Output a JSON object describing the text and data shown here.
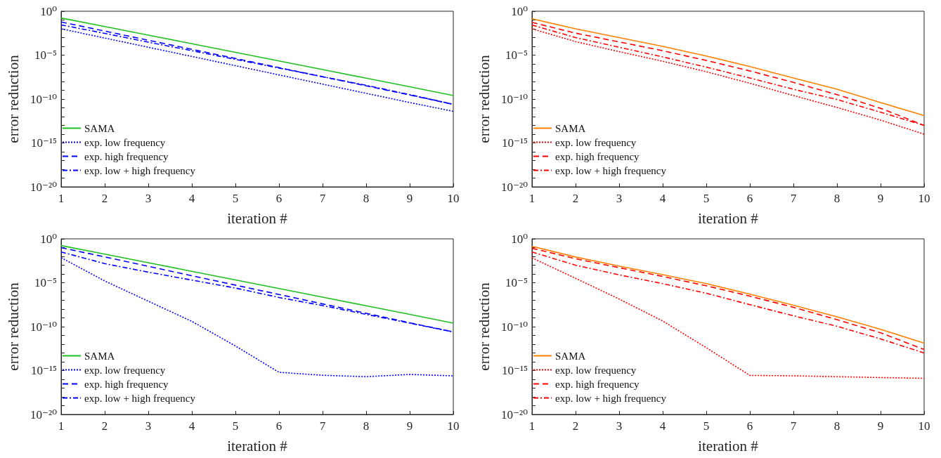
{
  "chart_data": [
    {
      "type": "line",
      "xlabel": "iteration #",
      "ylabel": "error reduction",
      "x": [
        1,
        2,
        3,
        4,
        5,
        6,
        7,
        8,
        9,
        10
      ],
      "log": "y",
      "grid": false,
      "legend": "bottom left",
      "xlim": [
        1,
        10
      ],
      "xticks": [
        1,
        2,
        3,
        4,
        5,
        6,
        7,
        8,
        9,
        10
      ],
      "ylim": [
        1e-20,
        1
      ],
      "yticks": [
        {
          "value": 1,
          "label": "10⁰"
        },
        {
          "value": 0.1,
          "label": null
        },
        {
          "value": 0.01,
          "label": null
        },
        {
          "value": 0.001,
          "label": null
        },
        {
          "value": 0.0001,
          "label": null
        },
        {
          "value": 1e-05,
          "label": "10⁻⁵"
        },
        {
          "value": 1e-06,
          "label": null
        },
        {
          "value": 1e-07,
          "label": null
        },
        {
          "value": 1e-08,
          "label": null
        },
        {
          "value": 1e-09,
          "label": null
        },
        {
          "value": 1e-10,
          "label": "10⁻¹⁰"
        },
        {
          "value": 1e-11,
          "label": null
        },
        {
          "value": 1e-12,
          "label": null
        },
        {
          "value": 1e-13,
          "label": null
        },
        {
          "value": 1e-14,
          "label": null
        },
        {
          "value": 1e-15,
          "label": "10⁻¹⁵"
        },
        {
          "value": 1e-16,
          "label": null
        },
        {
          "value": 1e-17,
          "label": null
        },
        {
          "value": 1e-18,
          "label": null
        },
        {
          "value": 1e-19,
          "label": null
        },
        {
          "value": 1e-20,
          "label": "10⁻²⁰"
        }
      ],
      "series": [
        {
          "name": "SAMA",
          "color": "#1fbf1f",
          "line_style": "solid",
          "values": [
            0.17,
            0.018,
            0.0019,
            0.0002,
            2.1e-05,
            2.2e-06,
            2.3e-07,
            2.4e-08,
            2.5e-09,
            2.5e-10
          ]
        },
        {
          "name": "exp. low frequency",
          "color": "#0000ff",
          "line_style": "dotted",
          "values": [
            0.01,
            0.00089,
            7.9e-05,
            7.1e-06,
            6.3e-07,
            5.6e-08,
            5e-09,
            4.5e-10,
            4e-11,
            4e-12
          ]
        },
        {
          "name": "exp. high frequency",
          "color": "#0000ff",
          "line_style": "dashed",
          "values": [
            0.06,
            0.0055,
            0.0005,
            4.6e-05,
            4.2e-06,
            3.8e-07,
            3.5e-08,
            3.2e-09,
            2.9e-10,
            2.5e-11
          ]
        },
        {
          "name": "exp. low + high frequency",
          "color": "#0000ff",
          "line_style": "dashdot",
          "values": [
            0.028,
            0.003,
            0.0003,
            3.2e-05,
            3.3e-06,
            3.4e-07,
            3.5e-08,
            3.7e-09,
            3.2e-10,
            2.5e-11
          ]
        }
      ]
    },
    {
      "type": "line",
      "xlabel": "iteration #",
      "ylabel": "error reduction",
      "x": [
        1,
        2,
        3,
        4,
        5,
        6,
        7,
        8,
        9,
        10
      ],
      "log": "y",
      "grid": false,
      "legend": "bottom left",
      "xlim": [
        1,
        10
      ],
      "xticks": [
        1,
        2,
        3,
        4,
        5,
        6,
        7,
        8,
        9,
        10
      ],
      "ylim": [
        1e-20,
        1
      ],
      "yticks": [
        {
          "value": 1,
          "label": "10⁰"
        },
        {
          "value": 0.1,
          "label": null
        },
        {
          "value": 0.01,
          "label": null
        },
        {
          "value": 0.001,
          "label": null
        },
        {
          "value": 0.0001,
          "label": null
        },
        {
          "value": 1e-05,
          "label": "10⁻⁵"
        },
        {
          "value": 1e-06,
          "label": null
        },
        {
          "value": 1e-07,
          "label": null
        },
        {
          "value": 1e-08,
          "label": null
        },
        {
          "value": 1e-09,
          "label": null
        },
        {
          "value": 1e-10,
          "label": "10⁻¹⁰"
        },
        {
          "value": 1e-11,
          "label": null
        },
        {
          "value": 1e-12,
          "label": null
        },
        {
          "value": 1e-13,
          "label": null
        },
        {
          "value": 1e-14,
          "label": null
        },
        {
          "value": 1e-15,
          "label": "10⁻¹⁵"
        },
        {
          "value": 1e-16,
          "label": null
        },
        {
          "value": 1e-17,
          "label": null
        },
        {
          "value": 1e-18,
          "label": null
        },
        {
          "value": 1e-19,
          "label": null
        },
        {
          "value": 1e-20,
          "label": "10⁻²⁰"
        }
      ],
      "series": [
        {
          "name": "SAMA",
          "color": "#ff8000",
          "line_style": "solid",
          "values": [
            0.14,
            0.01,
            0.001,
            0.0001,
            7.9e-06,
            5e-07,
            2.5e-08,
            1.3e-09,
            4e-11,
            1.3e-12
          ]
        },
        {
          "name": "exp. low frequency",
          "color": "#ff0000",
          "line_style": "dotted",
          "values": [
            0.01,
            0.00035,
            2.5e-05,
            2e-06,
            1.3e-07,
            6.3e-09,
            2.5e-10,
            1.1e-11,
            4e-13,
            1e-14
          ]
        },
        {
          "name": "exp. high frequency",
          "color": "#ff0000",
          "line_style": "dashed",
          "values": [
            0.054,
            0.0032,
            0.00032,
            3.2e-05,
            2.5e-06,
            1.6e-07,
            7.9e-09,
            3.2e-10,
            8.9e-12,
            1e-13
          ]
        },
        {
          "name": "exp. low + high frequency",
          "color": "#ff0000",
          "line_style": "dashdot",
          "values": [
            0.027,
            0.001,
            7.9e-05,
            6.3e-06,
            4.3e-07,
            2.5e-08,
            1.3e-09,
            8.9e-11,
            3.2e-12,
            1e-13
          ]
        }
      ]
    },
    {
      "type": "line",
      "xlabel": "iteration #",
      "ylabel": "error reduction",
      "x": [
        1,
        2,
        3,
        4,
        5,
        6,
        7,
        8,
        9,
        10
      ],
      "log": "y",
      "grid": false,
      "legend": "bottom left",
      "xlim": [
        1,
        10
      ],
      "xticks": [
        1,
        2,
        3,
        4,
        5,
        6,
        7,
        8,
        9,
        10
      ],
      "ylim": [
        1e-20,
        1
      ],
      "yticks": [
        {
          "value": 1,
          "label": "10⁰"
        },
        {
          "value": 0.1,
          "label": null
        },
        {
          "value": 0.01,
          "label": null
        },
        {
          "value": 0.001,
          "label": null
        },
        {
          "value": 0.0001,
          "label": null
        },
        {
          "value": 1e-05,
          "label": "10⁻⁵"
        },
        {
          "value": 1e-06,
          "label": null
        },
        {
          "value": 1e-07,
          "label": null
        },
        {
          "value": 1e-08,
          "label": null
        },
        {
          "value": 1e-09,
          "label": null
        },
        {
          "value": 1e-10,
          "label": "10⁻¹⁰"
        },
        {
          "value": 1e-11,
          "label": null
        },
        {
          "value": 1e-12,
          "label": null
        },
        {
          "value": 1e-13,
          "label": null
        },
        {
          "value": 1e-14,
          "label": null
        },
        {
          "value": 1e-15,
          "label": "10⁻¹⁵"
        },
        {
          "value": 1e-16,
          "label": null
        },
        {
          "value": 1e-17,
          "label": null
        },
        {
          "value": 1e-18,
          "label": null
        },
        {
          "value": 1e-19,
          "label": null
        },
        {
          "value": 1e-20,
          "label": "10⁻²⁰"
        }
      ],
      "series": [
        {
          "name": "SAMA",
          "color": "#1fbf1f",
          "line_style": "solid",
          "values": [
            0.17,
            0.018,
            0.0019,
            0.0002,
            2.1e-05,
            2.2e-06,
            2.3e-07,
            2.4e-08,
            2.5e-09,
            2.5e-10
          ]
        },
        {
          "name": "exp. low frequency",
          "color": "#0000ff",
          "line_style": "dotted",
          "values": [
            0.0071,
            1.6e-05,
            7.9e-08,
            4e-10,
            6.3e-13,
            6.3e-16,
            2.9e-16,
            2e-16,
            3.6e-16,
            2.5e-16
          ]
        },
        {
          "name": "exp. high frequency",
          "color": "#0000ff",
          "line_style": "dashed",
          "values": [
            0.1,
            0.0087,
            0.00074,
            6.3e-05,
            5.4e-06,
            4.6e-07,
            3.9e-08,
            3.3e-09,
            2.8e-10,
            2.5e-11
          ]
        },
        {
          "name": "exp. low + high frequency",
          "color": "#0000ff",
          "line_style": "dashdot",
          "values": [
            0.032,
            0.0015,
            0.00016,
            2e-05,
            2.5e-06,
            2.1e-07,
            2.5e-08,
            2.5e-09,
            2.5e-10,
            2.5e-11
          ]
        }
      ]
    },
    {
      "type": "line",
      "xlabel": "iteration #",
      "ylabel": "error reduction",
      "x": [
        1,
        2,
        3,
        4,
        5,
        6,
        7,
        8,
        9,
        10
      ],
      "log": "y",
      "grid": false,
      "legend": "bottom left",
      "xlim": [
        1,
        10
      ],
      "xticks": [
        1,
        2,
        3,
        4,
        5,
        6,
        7,
        8,
        9,
        10
      ],
      "ylim": [
        1e-20,
        1
      ],
      "yticks": [
        {
          "value": 1,
          "label": "10⁰"
        },
        {
          "value": 0.1,
          "label": null
        },
        {
          "value": 0.01,
          "label": null
        },
        {
          "value": 0.001,
          "label": null
        },
        {
          "value": 0.0001,
          "label": null
        },
        {
          "value": 1e-05,
          "label": "10⁻⁵"
        },
        {
          "value": 1e-06,
          "label": null
        },
        {
          "value": 1e-07,
          "label": null
        },
        {
          "value": 1e-08,
          "label": null
        },
        {
          "value": 1e-09,
          "label": null
        },
        {
          "value": 1e-10,
          "label": "10⁻¹⁰"
        },
        {
          "value": 1e-11,
          "label": null
        },
        {
          "value": 1e-12,
          "label": null
        },
        {
          "value": 1e-13,
          "label": null
        },
        {
          "value": 1e-14,
          "label": null
        },
        {
          "value": 1e-15,
          "label": "10⁻¹⁵"
        },
        {
          "value": 1e-16,
          "label": null
        },
        {
          "value": 1e-17,
          "label": null
        },
        {
          "value": 1e-18,
          "label": null
        },
        {
          "value": 1e-19,
          "label": null
        },
        {
          "value": 1e-20,
          "label": "10⁻²⁰"
        }
      ],
      "series": [
        {
          "name": "SAMA",
          "color": "#ff8000",
          "line_style": "solid",
          "values": [
            0.14,
            0.0085,
            0.00079,
            8.3e-05,
            7.9e-06,
            5e-07,
            2.8e-08,
            1.3e-09,
            5e-11,
            1.3e-12
          ]
        },
        {
          "name": "exp. low frequency",
          "color": "#ff0000",
          "line_style": "dotted",
          "values": [
            0.0068,
            3.2e-05,
            1.4e-07,
            4.4e-10,
            4e-13,
            2.8e-16,
            2.5e-16,
            2e-16,
            1.6e-16,
            1.3e-16
          ]
        },
        {
          "name": "exp. high frequency",
          "color": "#ff0000",
          "line_style": "dashed",
          "values": [
            0.085,
            0.0054,
            0.00052,
            5.2e-05,
            4.5e-06,
            3e-07,
            1.6e-08,
            6.3e-10,
            2e-11,
            2.5e-13
          ]
        },
        {
          "name": "exp. low + high frequency",
          "color": "#ff0000",
          "line_style": "dashdot",
          "values": [
            0.032,
            0.001,
            7.9e-05,
            7.9e-06,
            6.3e-07,
            3.2e-08,
            1.7e-09,
            1.1e-10,
            4e-12,
            1e-13
          ]
        }
      ]
    }
  ]
}
